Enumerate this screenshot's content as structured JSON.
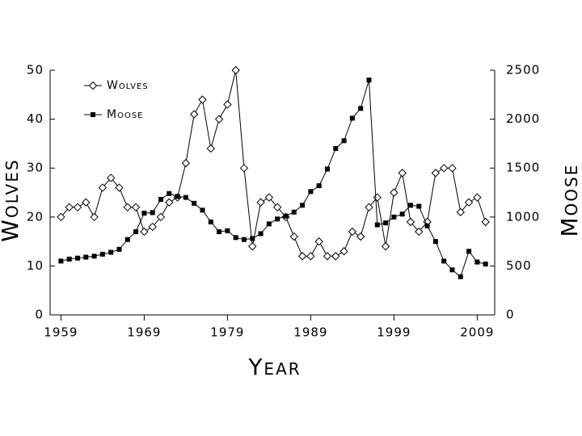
{
  "chart_data": {
    "type": "line",
    "xlabel": "Year",
    "ylabel": "Wolves",
    "y2label": "Moose",
    "x": [
      1959,
      1960,
      1961,
      1962,
      1963,
      1964,
      1965,
      1966,
      1967,
      1968,
      1969,
      1970,
      1971,
      1972,
      1973,
      1974,
      1975,
      1976,
      1977,
      1978,
      1979,
      1980,
      1981,
      1982,
      1983,
      1984,
      1985,
      1986,
      1987,
      1988,
      1989,
      1990,
      1991,
      1992,
      1993,
      1994,
      1995,
      1996,
      1997,
      1998,
      1999,
      2000,
      2001,
      2002,
      2003,
      2004,
      2005,
      2006,
      2007,
      2008,
      2009,
      2010
    ],
    "series": [
      {
        "name": "Wolves",
        "color": "#000000",
        "marker": "diamond",
        "values": [
          20,
          22,
          22,
          23,
          20,
          26,
          28,
          26,
          22,
          22,
          17,
          18,
          20,
          23,
          24,
          31,
          41,
          44,
          34,
          40,
          43,
          50,
          30,
          14,
          23,
          24,
          22,
          20,
          16,
          12,
          12,
          15,
          12,
          12,
          13,
          17,
          16,
          22,
          24,
          14,
          25,
          29,
          19,
          17,
          19,
          29,
          30,
          30,
          21,
          23,
          24,
          19
        ]
      },
      {
        "name": "Moose",
        "color": "#000000",
        "marker": "square",
        "axis": "y2",
        "values": [
          550,
          570,
          580,
          590,
          600,
          620,
          640,
          670,
          770,
          850,
          1040,
          1045,
          1180,
          1240,
          1210,
          1200,
          1140,
          1070,
          950,
          850,
          860,
          790,
          770,
          780,
          830,
          930,
          980,
          1010,
          1050,
          1120,
          1260,
          1320,
          1490,
          1700,
          1780,
          2010,
          2110,
          2400,
          920,
          940,
          1000,
          1030,
          1120,
          1110,
          910,
          750,
          550,
          460,
          390,
          650,
          540,
          520
        ]
      }
    ],
    "xlim": [
      1957.7,
      2011.1
    ],
    "xticks": [
      1959,
      1969,
      1979,
      1989,
      1999,
      2009
    ],
    "ylim": [
      0,
      50
    ],
    "yticks": [
      0,
      10,
      20,
      30,
      40,
      50
    ],
    "y2lim": [
      0,
      2500
    ],
    "y2ticks": [
      0,
      500,
      1000,
      1500,
      2000,
      2500
    ],
    "legend": "upper left",
    "grid": false
  }
}
